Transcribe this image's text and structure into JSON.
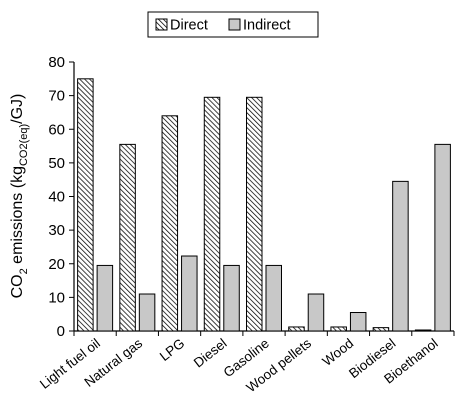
{
  "chart_data": {
    "type": "bar",
    "categories": [
      "Light fuel oil",
      "Natural gas",
      "LPG",
      "Diesel",
      "Gasoline",
      "Wood pellets",
      "Wood",
      "Biodiesel",
      "Bioethanol"
    ],
    "series": [
      {
        "name": "Direct",
        "values": [
          75,
          55.5,
          64,
          69.5,
          69.5,
          1.2,
          1.2,
          1.0,
          0.3
        ],
        "color": "#ffffff",
        "pattern": "diagonal-hatch"
      },
      {
        "name": "Indirect",
        "values": [
          19.5,
          11,
          22.3,
          19.5,
          19.5,
          11,
          5.5,
          44.5,
          55.5
        ],
        "color": "#c8c8c8"
      }
    ],
    "ylim": [
      0,
      80
    ],
    "yticks": [
      "0",
      "10",
      "20",
      "30",
      "40",
      "50",
      "60",
      "70",
      "80"
    ],
    "ylabel": {
      "prefix": "CO",
      "prefix_sub": "2",
      "middle": " emissions (kg",
      "unit_sub": "CO2(eq)",
      "suffix": "/GJ)"
    },
    "xlabel": "",
    "title": "",
    "legend_position": "top-center",
    "grid": false
  }
}
